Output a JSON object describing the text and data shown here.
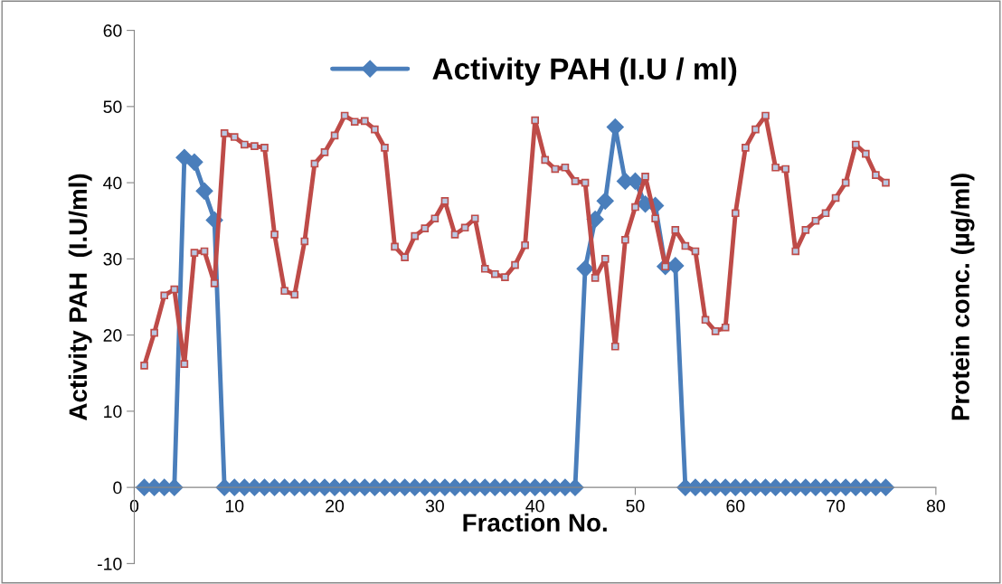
{
  "chart_data": {
    "type": "line",
    "xlabel": "Fraction No.",
    "ylabel": "Activity PAH  (I.U/ml)",
    "y2label": "Protein conc. (µg/ml)",
    "x": [
      1,
      2,
      3,
      4,
      5,
      6,
      7,
      8,
      9,
      10,
      11,
      12,
      13,
      14,
      15,
      16,
      17,
      18,
      19,
      20,
      21,
      22,
      23,
      24,
      25,
      26,
      27,
      28,
      29,
      30,
      31,
      32,
      33,
      34,
      35,
      36,
      37,
      38,
      39,
      40,
      41,
      42,
      43,
      44,
      45,
      46,
      47,
      48,
      49,
      50,
      51,
      52,
      53,
      54,
      55,
      56,
      57,
      58,
      59,
      60,
      61,
      62,
      63,
      64,
      65,
      66,
      67,
      68,
      69,
      70,
      71,
      72,
      73,
      74,
      75
    ],
    "series": [
      {
        "name": "Activity PAH (I.U / ml)",
        "color": "#4a7ebb",
        "marker": "diamond",
        "values": [
          0,
          0,
          0,
          0,
          43.3,
          42.7,
          38.9,
          35.1,
          0,
          0,
          0,
          0,
          0,
          0,
          0,
          0,
          0,
          0,
          0,
          0,
          0,
          0,
          0,
          0,
          0,
          0,
          0,
          0,
          0,
          0,
          0,
          0,
          0,
          0,
          0,
          0,
          0,
          0,
          0,
          0,
          0,
          0,
          0,
          0,
          28.7,
          35.2,
          37.6,
          47.3,
          40.2,
          40.2,
          37.2,
          37,
          29,
          29.1,
          0,
          0,
          0,
          0,
          0,
          0,
          0,
          0,
          0,
          0,
          0,
          0,
          0,
          0,
          0,
          0,
          0,
          0,
          0,
          0,
          0
        ]
      },
      {
        "color": "#be4b48",
        "marker": "square",
        "values": [
          16,
          20.3,
          25.2,
          26,
          16.2,
          30.8,
          31,
          26.8,
          46.5,
          46,
          45,
          44.8,
          44.6,
          33.2,
          25.8,
          25.3,
          32.3,
          42.5,
          44,
          46.2,
          48.8,
          48,
          48.1,
          47,
          44.6,
          31.6,
          30.2,
          33,
          34,
          35.3,
          37.6,
          33.2,
          34.1,
          35.3,
          28.7,
          28,
          27.6,
          29.2,
          31.8,
          48.2,
          43,
          41.8,
          42,
          40.2,
          40,
          27.5,
          30,
          18.5,
          32.5,
          36.8,
          40.8,
          35.3,
          29,
          33.8,
          31.7,
          31,
          22,
          20.5,
          21,
          36,
          44.6,
          47,
          48.8,
          42,
          41.8,
          31,
          33.8,
          35,
          36,
          38,
          40,
          45,
          43.8,
          41,
          40
        ]
      }
    ],
    "xlim": [
      0,
      80
    ],
    "xticks": [
      0,
      10,
      20,
      30,
      40,
      50,
      60,
      70,
      80
    ],
    "ylim": [
      -10,
      60
    ],
    "yticks": [
      -10,
      0,
      10,
      20,
      30,
      40,
      50,
      60
    ],
    "grid": false,
    "legend": "top",
    "line_style": "solid"
  }
}
